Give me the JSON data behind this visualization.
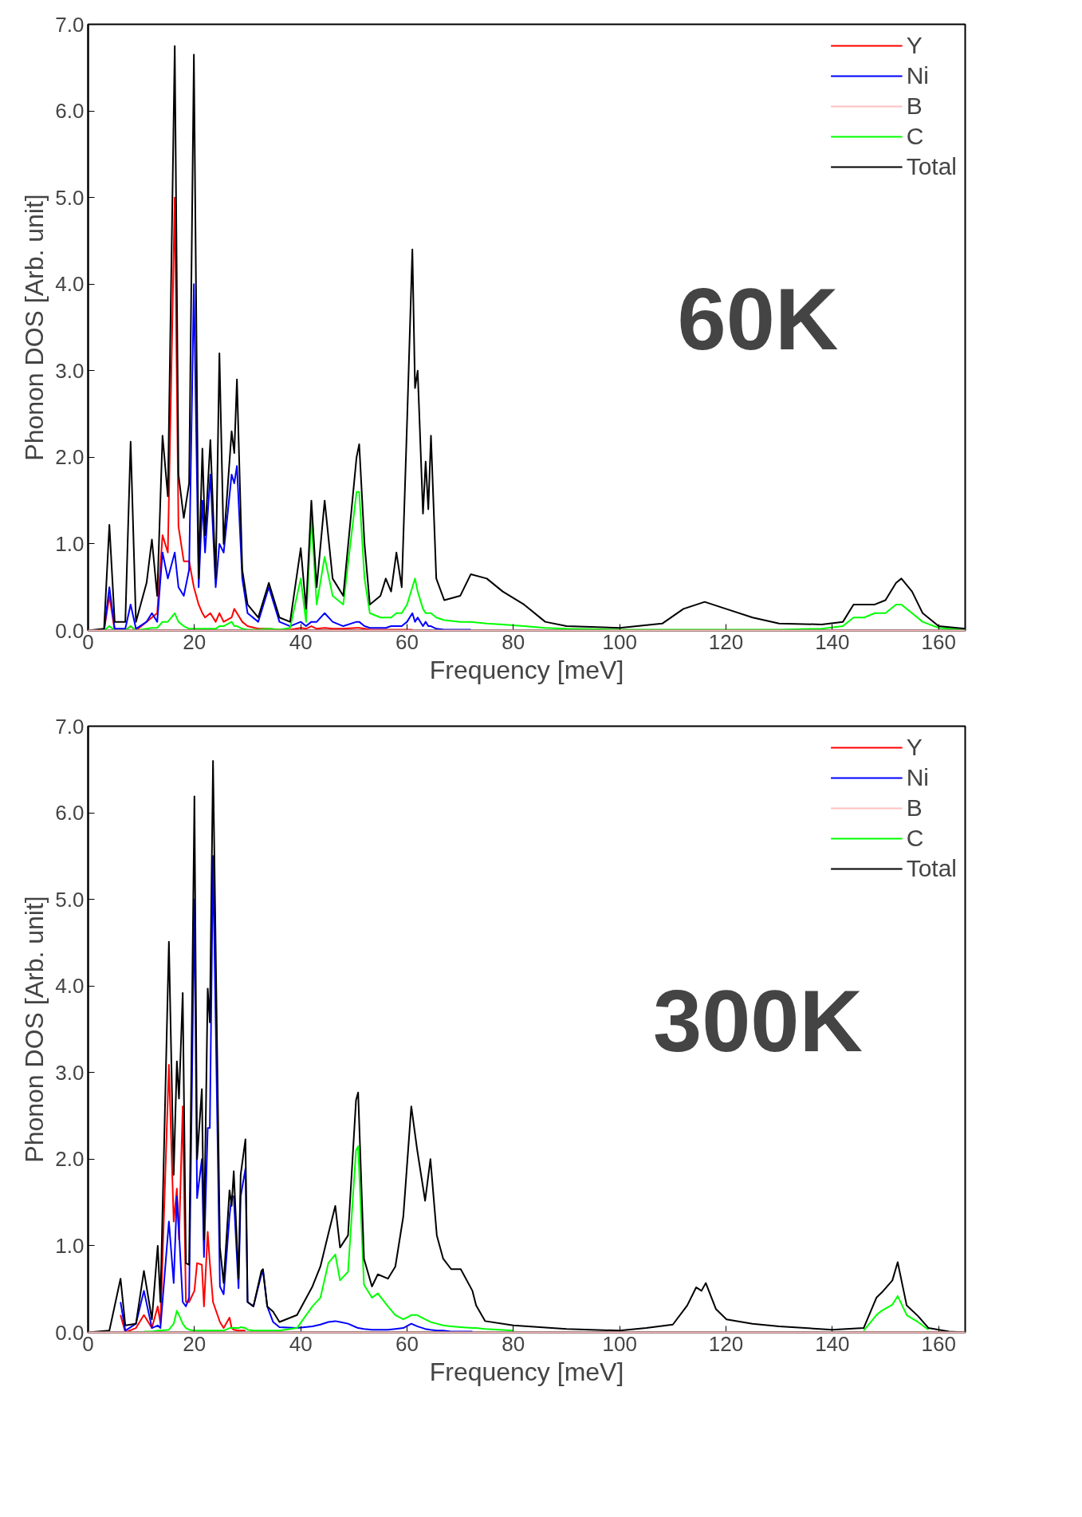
{
  "chart_data": [
    {
      "type": "line",
      "xlabel": "Frequency [meV]",
      "ylabel": "Phonon DOS [Arb. unit]",
      "annotations": [
        "60K"
      ],
      "legend": "top right",
      "grid": false,
      "xlim": [
        0,
        165
      ],
      "ylim": [
        0,
        7.0
      ],
      "xticks": [
        0,
        20,
        40,
        60,
        80,
        100,
        120,
        140,
        160
      ],
      "yticks": [
        {
          "value": 0,
          "label": "0.0"
        },
        {
          "value": 1,
          "label": "1.0"
        },
        {
          "value": 2,
          "label": "2.0"
        },
        {
          "value": 3,
          "label": "3.0"
        },
        {
          "value": 4,
          "label": "4.0"
        },
        {
          "value": 5,
          "label": "5.0"
        },
        {
          "value": 6,
          "label": "6.0"
        },
        {
          "value": 7,
          "label": "7.0"
        }
      ],
      "x": [
        0,
        3,
        4,
        5,
        7,
        8,
        9,
        11,
        12,
        13,
        14,
        15,
        16.3,
        17,
        18,
        19,
        19.9,
        20.8,
        21.5,
        22,
        23,
        24,
        24.7,
        25.5,
        27,
        27.5,
        28,
        29,
        30,
        32,
        34,
        36,
        38,
        40,
        41,
        42,
        43,
        44.5,
        46,
        48,
        50.5,
        51,
        52,
        53,
        55,
        56,
        57,
        58,
        59,
        60,
        61,
        61.5,
        62,
        63,
        63.5,
        64,
        64.5,
        65.5,
        67,
        70,
        72,
        75,
        78,
        82,
        86,
        90,
        100,
        108,
        112,
        116,
        120,
        125,
        130,
        138,
        142,
        144,
        146,
        148,
        150,
        152,
        153,
        155,
        157,
        160,
        165
      ],
      "series": [
        {
          "name": "Y",
          "color": "#ff0000",
          "values": [
            0,
            0,
            0.4,
            0,
            0,
            0.05,
            0,
            0.1,
            0.15,
            0.2,
            1.1,
            0.9,
            5.0,
            1.2,
            0.8,
            0.8,
            0.5,
            0.3,
            0.2,
            0.15,
            0.2,
            0.1,
            0.2,
            0.1,
            0.15,
            0.25,
            0.2,
            0.1,
            0.05,
            0.02,
            0.02,
            0.01,
            0.01,
            0.03,
            0.02,
            0.05,
            0.02,
            0.03,
            0.02,
            0.02,
            0.03,
            0.03,
            0.02,
            0.01,
            0.01,
            0.01,
            0.01,
            0.01,
            0.01,
            0.01,
            0.01,
            null,
            null,
            null,
            null,
            null,
            null,
            null,
            null,
            null,
            null,
            null,
            null,
            null,
            null,
            null,
            null,
            null,
            null,
            null,
            null,
            null,
            null,
            null,
            null,
            null,
            null,
            null,
            null,
            null,
            null,
            null,
            null,
            null,
            null
          ]
        },
        {
          "name": "Ni",
          "color": "#0000ff",
          "values": [
            0,
            0,
            0.5,
            0.02,
            0.02,
            0.3,
            0.02,
            0.1,
            0.2,
            0.1,
            0.9,
            0.6,
            0.9,
            0.5,
            0.4,
            0.7,
            4.0,
            0.5,
            1.5,
            0.9,
            1.8,
            0.5,
            1.0,
            0.9,
            1.8,
            1.7,
            1.9,
            0.6,
            0.2,
            0.1,
            0.5,
            0.1,
            0.05,
            0.1,
            0.05,
            0.1,
            0.1,
            0.2,
            0.1,
            0.05,
            0.1,
            0.1,
            0.05,
            0.03,
            0.03,
            0.03,
            0.05,
            0.05,
            0.05,
            0.1,
            0.2,
            0.1,
            0.15,
            0.05,
            0.1,
            0.05,
            0.05,
            0.02,
            0.01,
            0.01,
            0.01,
            null,
            null,
            null,
            null,
            null,
            null,
            null,
            null,
            null,
            null,
            null,
            null,
            null,
            null,
            null,
            null,
            null,
            null,
            null,
            null,
            null,
            null,
            null,
            null
          ]
        },
        {
          "name": "B",
          "color": "#ffc0c0",
          "values": [
            0,
            0,
            0,
            0,
            0,
            0,
            0,
            0,
            0,
            0,
            0,
            0,
            0,
            0,
            0,
            0,
            0,
            0,
            0,
            0,
            0,
            0,
            0,
            0,
            0,
            0,
            0,
            0,
            0,
            0,
            0,
            0,
            0,
            0,
            0,
            0,
            0,
            0,
            0,
            0,
            0,
            0,
            0,
            0,
            0,
            0,
            0,
            0,
            0,
            0,
            0,
            0,
            0,
            0,
            0,
            0,
            0,
            0,
            0,
            0,
            0,
            0,
            0,
            0,
            0,
            0,
            0,
            0,
            0,
            0,
            0,
            0,
            0,
            0,
            0,
            0,
            0,
            0,
            0,
            0,
            0,
            0,
            0,
            0,
            0
          ]
        },
        {
          "name": "C",
          "color": "#00ff00",
          "values": [
            0,
            0,
            0.05,
            0,
            0,
            0.05,
            0,
            0.02,
            0.03,
            0.03,
            0.1,
            0.1,
            0.2,
            0.1,
            0.05,
            0.02,
            0.02,
            0.02,
            0.02,
            0.02,
            0.02,
            0.02,
            0.05,
            0.05,
            0.1,
            0.05,
            0.05,
            0.02,
            0.01,
            0.01,
            0.02,
            0.01,
            0.03,
            0.6,
            0.1,
            1.3,
            0.3,
            0.85,
            0.4,
            0.3,
            1.6,
            1.6,
            0.6,
            0.2,
            0.15,
            0.15,
            0.15,
            0.2,
            0.2,
            0.3,
            0.5,
            0.6,
            0.45,
            0.25,
            0.2,
            0.2,
            0.2,
            0.15,
            0.12,
            0.1,
            0.1,
            0.08,
            0.07,
            0.05,
            0.03,
            0.02,
            0.01,
            0.01,
            0.01,
            0.01,
            0.01,
            0.01,
            0.01,
            0.02,
            0.05,
            0.15,
            0.15,
            0.2,
            0.2,
            0.3,
            0.3,
            0.2,
            0.1,
            0.03,
            0.01
          ]
        },
        {
          "name": "Total",
          "color": "#000000",
          "values": [
            0,
            0.02,
            1.22,
            0.1,
            0.1,
            2.18,
            0.1,
            0.55,
            1.05,
            0.4,
            2.25,
            1.55,
            6.75,
            1.8,
            1.3,
            1.7,
            6.65,
            0.6,
            2.1,
            1.1,
            2.2,
            0.6,
            3.2,
            1.0,
            2.3,
            2.05,
            2.9,
            0.7,
            0.3,
            0.15,
            0.55,
            0.15,
            0.1,
            0.95,
            0.25,
            1.5,
            0.5,
            1.5,
            0.6,
            0.4,
            2.0,
            2.15,
            1.0,
            0.3,
            0.4,
            0.6,
            0.45,
            0.9,
            0.5,
            2.4,
            4.4,
            2.8,
            3.0,
            1.35,
            1.95,
            1.4,
            2.25,
            0.6,
            0.35,
            0.4,
            0.65,
            0.6,
            0.45,
            0.3,
            0.1,
            0.05,
            0.03,
            0.08,
            0.25,
            0.33,
            0.25,
            0.15,
            0.08,
            0.07,
            0.1,
            0.3,
            0.3,
            0.3,
            0.35,
            0.55,
            0.6,
            0.45,
            0.2,
            0.05,
            0.02
          ]
        }
      ]
    },
    {
      "type": "line",
      "xlabel": "Frequency [meV]",
      "ylabel": "Phonon DOS [Arb. unit]",
      "annotations": [
        "300K"
      ],
      "legend": "top right",
      "grid": false,
      "xlim": [
        0,
        165
      ],
      "ylim": [
        0,
        7.0
      ],
      "xticks": [
        0,
        20,
        40,
        60,
        80,
        100,
        120,
        140,
        160
      ],
      "yticks": [
        {
          "value": 0,
          "label": "0.0"
        },
        {
          "value": 1,
          "label": "1.0"
        },
        {
          "value": 2,
          "label": "2.0"
        },
        {
          "value": 3,
          "label": "3.0"
        },
        {
          "value": 4,
          "label": "4.0"
        },
        {
          "value": 5,
          "label": "5.0"
        },
        {
          "value": 6,
          "label": "6.0"
        },
        {
          "value": 7,
          "label": "7.0"
        }
      ],
      "x": [
        0,
        4,
        6.1,
        7,
        9,
        10.5,
        12,
        13.1,
        13.6,
        15.2,
        16.1,
        16.7,
        17.1,
        17.8,
        18.4,
        19.0,
        20.0,
        20.5,
        21.4,
        21.8,
        22.5,
        22.9,
        23.5,
        24.8,
        25.5,
        26.6,
        27.0,
        27.4,
        28.3,
        28.7,
        29.6,
        30.0,
        31.1,
        32.6,
        32.9,
        33.7,
        34.8,
        36,
        39.3,
        42.2,
        43.7,
        45.2,
        46.5,
        47.4,
        48.9,
        50.4,
        50.8,
        51.9,
        53.4,
        54.5,
        56.4,
        57.8,
        59.3,
        60.8,
        61.9,
        63.4,
        64.4,
        65.6,
        66.8,
        68.3,
        70.1,
        72.3,
        73,
        74.7,
        80,
        90,
        100,
        105,
        110,
        112.7,
        114.4,
        115.4,
        116.2,
        118.1,
        120.1,
        125,
        130,
        140,
        145.9,
        148.3,
        149.3,
        151.3,
        152.3,
        154,
        156.1,
        158.1,
        162,
        165
      ],
      "series": [
        {
          "name": "Y",
          "color": "#ff0000",
          "values": [
            null,
            null,
            0.2,
            0,
            0.05,
            0.2,
            0.05,
            0.3,
            0.1,
            3.09,
            1.28,
            1.66,
            1.07,
            2.61,
            0.35,
            0.35,
            0.48,
            0.8,
            0.78,
            0.3,
            1.16,
            0.8,
            0.35,
            0.12,
            0.05,
            0.17,
            0.05,
            0.03,
            0.02,
            0.02,
            0.02,
            null,
            null,
            null,
            null,
            null,
            null,
            null,
            null,
            null,
            null,
            null,
            null,
            null,
            null,
            null,
            null,
            null,
            null,
            null,
            null,
            null,
            null,
            null,
            null,
            null,
            null,
            null,
            null,
            null,
            null,
            null,
            null,
            null,
            null,
            null,
            null,
            null,
            null,
            null,
            null,
            null,
            null,
            null,
            null,
            null,
            null,
            null,
            null,
            null,
            null,
            null,
            null,
            null,
            null,
            null,
            null,
            null
          ]
        },
        {
          "name": "Ni",
          "color": "#0000ff",
          "values": [
            null,
            null,
            0.35,
            0.02,
            0.1,
            0.48,
            0.05,
            0.08,
            0.05,
            1.28,
            0.57,
            1.57,
            1.16,
            0.35,
            0.3,
            0.4,
            5.0,
            1.55,
            2.0,
            0.87,
            2.36,
            2.36,
            5.5,
            0.53,
            0.44,
            1.34,
            1.57,
            1.57,
            0.51,
            1.57,
            1.89,
            0.35,
            0.3,
            0.67,
            0.71,
            0.3,
            0.12,
            0.06,
            0.05,
            0.07,
            0.09,
            0.12,
            0.13,
            0.12,
            0.1,
            0.06,
            0.05,
            0.04,
            0.03,
            0.03,
            0.03,
            0.04,
            0.05,
            0.1,
            0.07,
            0.04,
            0.03,
            0.02,
            0.02,
            0.01,
            0.01,
            0.01,
            null,
            null,
            null,
            null,
            null,
            null,
            null,
            null,
            null,
            null,
            null,
            null,
            null,
            null,
            null,
            null,
            null,
            null,
            null,
            null,
            null,
            null,
            null,
            null,
            null,
            null
          ]
        },
        {
          "name": "B",
          "color": "#ffc0c0",
          "values": [
            0,
            0,
            0,
            0,
            0,
            0,
            0,
            0,
            0,
            0,
            0,
            0,
            0,
            0,
            0,
            0,
            0,
            0,
            0,
            0,
            0,
            0,
            0,
            0,
            0,
            0,
            0,
            0,
            0,
            0,
            0,
            0,
            0,
            0,
            0,
            0,
            0,
            0,
            0,
            0,
            0,
            0,
            0,
            0,
            0,
            0,
            0,
            0,
            0,
            0,
            0,
            0,
            0,
            0,
            0,
            0,
            0,
            0,
            0,
            0,
            0,
            0,
            0,
            0,
            0,
            0,
            0,
            0,
            0,
            0,
            0,
            0,
            0,
            0,
            0,
            0,
            0,
            0,
            0,
            0,
            0,
            0,
            0,
            0,
            0,
            0,
            0,
            0
          ]
        },
        {
          "name": "C",
          "color": "#00ff00",
          "values": [
            null,
            null,
            null,
            null,
            null,
            0.01,
            0.01,
            0.02,
            0.02,
            0.03,
            0.1,
            0.25,
            0.2,
            0.1,
            0.05,
            0.03,
            0.02,
            0.02,
            0.02,
            0.02,
            0.02,
            0.02,
            0.02,
            0.02,
            0.02,
            0.05,
            0.05,
            0.05,
            0.05,
            0.06,
            0.05,
            0.03,
            0.02,
            0.02,
            0.02,
            0.02,
            0.02,
            0.02,
            0.05,
            0.3,
            0.4,
            0.8,
            0.9,
            0.6,
            0.7,
            2.1,
            2.15,
            0.55,
            0.4,
            0.45,
            0.3,
            0.2,
            0.15,
            0.2,
            0.2,
            0.15,
            0.12,
            0.1,
            0.08,
            0.07,
            0.06,
            0.05,
            0.05,
            0.04,
            0.02,
            null,
            null,
            null,
            null,
            null,
            null,
            null,
            null,
            null,
            null,
            null,
            null,
            null,
            0.02,
            0.2,
            0.25,
            0.32,
            0.42,
            0.2,
            0.12,
            0.03,
            null,
            null
          ]
        },
        {
          "name": "Total",
          "color": "#000000",
          "values": [
            0,
            0.02,
            0.62,
            0.08,
            0.1,
            0.71,
            0.15,
            1.0,
            0.35,
            4.51,
            1.82,
            3.13,
            2.7,
            3.92,
            0.8,
            0.78,
            6.19,
            2.0,
            2.81,
            1.07,
            3.97,
            3.58,
            6.6,
            0.98,
            0.57,
            1.64,
            1.46,
            1.86,
            0.62,
            1.82,
            2.23,
            0.35,
            0.3,
            0.71,
            0.73,
            0.3,
            0.24,
            0.12,
            0.2,
            0.53,
            0.76,
            1.14,
            1.46,
            0.98,
            1.12,
            2.68,
            2.77,
            0.85,
            0.53,
            0.67,
            0.62,
            0.76,
            1.34,
            2.61,
            2.11,
            1.52,
            2.0,
            1.12,
            0.85,
            0.73,
            0.73,
            0.48,
            0.31,
            0.13,
            0.08,
            0.04,
            0.02,
            0.05,
            0.09,
            0.31,
            0.52,
            0.48,
            0.57,
            0.27,
            0.15,
            0.1,
            0.07,
            0.03,
            0.05,
            0.4,
            0.46,
            0.6,
            0.81,
            0.31,
            0.19,
            0.05,
            0.01,
            0
          ]
        }
      ]
    }
  ]
}
